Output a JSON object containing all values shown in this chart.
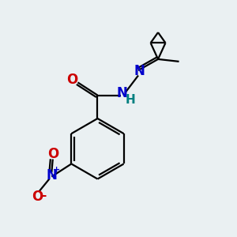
{
  "bg_color": "#eaf0f2",
  "line_color": "#000000",
  "N_color": "#0000cc",
  "O_color": "#cc0000",
  "H_color": "#008080",
  "line_width": 1.6,
  "font_size": 10,
  "figsize": [
    3.0,
    3.0
  ],
  "dpi": 100,
  "xlim": [
    0,
    10
  ],
  "ylim": [
    0,
    10
  ]
}
